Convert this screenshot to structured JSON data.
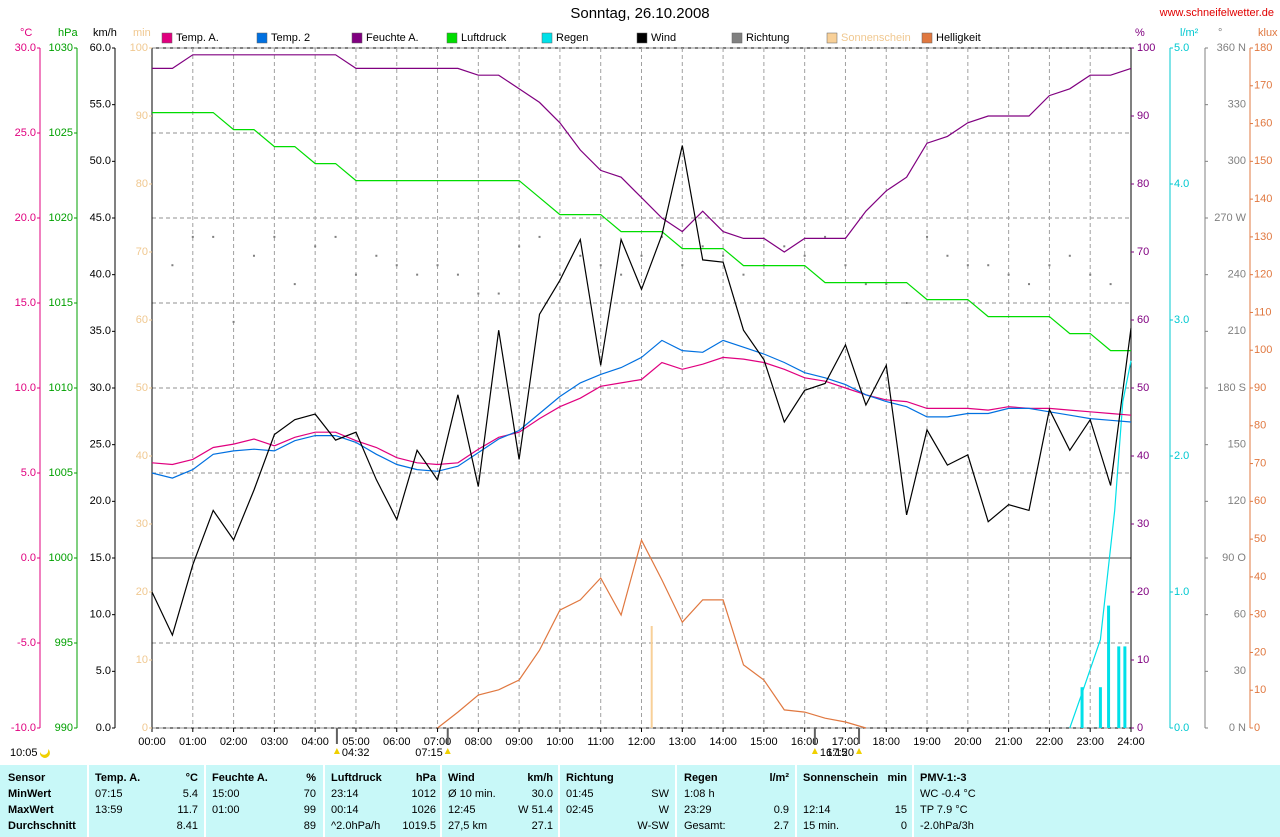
{
  "chart_data": {
    "type": "line",
    "title": "Sonntag, 26.10.2008",
    "source": "www.schneifelwetter.de",
    "note": "10:05",
    "grid": true,
    "grid_axis": 0,
    "xlim": [
      0,
      24
    ],
    "xticks": [
      {
        "value": 0,
        "label": "00:00"
      },
      {
        "value": 1,
        "label": "01:00"
      },
      {
        "value": 2,
        "label": "02:00"
      },
      {
        "value": 3,
        "label": "03:00"
      },
      {
        "value": 4,
        "label": "04:00"
      },
      {
        "value": 5,
        "label": "05:00"
      },
      {
        "value": 6,
        "label": "06:00"
      },
      {
        "value": 7,
        "label": "07:00"
      },
      {
        "value": 8,
        "label": "08:00"
      },
      {
        "value": 9,
        "label": "09:00"
      },
      {
        "value": 10,
        "label": "10:00"
      },
      {
        "value": 11,
        "label": "11:00"
      },
      {
        "value": 12,
        "label": "12:00"
      },
      {
        "value": 13,
        "label": "13:00"
      },
      {
        "value": 14,
        "label": "14:00"
      },
      {
        "value": 15,
        "label": "15:00"
      },
      {
        "value": 16,
        "label": "16:00"
      },
      {
        "value": 17,
        "label": "17:00"
      },
      {
        "value": 18,
        "label": "18:00"
      },
      {
        "value": 19,
        "label": "19:00"
      },
      {
        "value": 20,
        "label": "20:00"
      },
      {
        "value": 21,
        "label": "21:00"
      },
      {
        "value": 22,
        "label": "22:00"
      },
      {
        "value": 23,
        "label": "23:00"
      },
      {
        "value": 24,
        "label": "24:00"
      }
    ],
    "x": [
      0,
      0.5,
      1,
      1.5,
      2,
      2.5,
      3,
      3.5,
      4,
      4.5,
      5,
      5.5,
      6,
      6.5,
      7,
      7.5,
      8,
      8.5,
      9,
      9.5,
      10,
      10.5,
      11,
      11.5,
      12,
      12.5,
      13,
      13.5,
      14,
      14.5,
      15,
      15.5,
      16,
      16.5,
      17,
      17.5,
      18,
      18.5,
      19,
      19.5,
      20,
      20.5,
      21,
      21.5,
      22,
      22.5,
      23,
      23.5,
      24
    ],
    "axes": [
      {
        "label": "°C",
        "color": "#e0007f",
        "lim": [
          -10,
          30
        ],
        "ticks": [
          {
            "value": -10,
            "label": "-10.0"
          },
          {
            "value": -5,
            "label": "-5.0"
          },
          {
            "value": 0,
            "label": "0.0"
          },
          {
            "value": 5,
            "label": "5.0"
          },
          {
            "value": 10,
            "label": "10.0"
          },
          {
            "value": 15,
            "label": "15.0"
          },
          {
            "value": 20,
            "label": "20.0"
          },
          {
            "value": 25,
            "label": "25.0"
          },
          {
            "value": 30,
            "label": "30.0"
          }
        ]
      },
      {
        "label": "hPa",
        "color": "#00a000",
        "lim": [
          990,
          1030
        ],
        "ticks": [
          990,
          995,
          1000,
          1005,
          1010,
          1015,
          1020,
          1025,
          1030
        ]
      },
      {
        "label": "km/h",
        "color": "#000000",
        "lim": [
          0,
          60
        ],
        "ticks": [
          {
            "value": 0,
            "label": "0.0"
          },
          {
            "value": 5,
            "label": "5.0"
          },
          {
            "value": 10,
            "label": "10.0"
          },
          {
            "value": 15,
            "label": "15.0"
          },
          {
            "value": 20,
            "label": "20.0"
          },
          {
            "value": 25,
            "label": "25.0"
          },
          {
            "value": 30,
            "label": "30.0"
          },
          {
            "value": 35,
            "label": "35.0"
          },
          {
            "value": 40,
            "label": "40.0"
          },
          {
            "value": 45,
            "label": "45.0"
          },
          {
            "value": 50,
            "label": "50.0"
          },
          {
            "value": 55,
            "label": "55.0"
          },
          {
            "value": 60,
            "label": "60.0"
          }
        ]
      },
      {
        "label": "min",
        "color": "#f0c890",
        "lim": [
          0,
          100
        ],
        "ticks": [
          0,
          10,
          20,
          30,
          40,
          50,
          60,
          70,
          80,
          90,
          100
        ]
      },
      {
        "label": "%",
        "color": "#800080",
        "lim": [
          0,
          100
        ],
        "ticks": [
          0,
          10,
          20,
          30,
          40,
          50,
          60,
          70,
          80,
          90,
          100
        ]
      },
      {
        "label": "l/m²",
        "color": "#00c8d0",
        "lim": [
          0,
          5
        ],
        "ticks": [
          {
            "value": 0,
            "label": "0.0"
          },
          {
            "value": 1,
            "label": "1.0"
          },
          {
            "value": 2,
            "label": "2.0"
          },
          {
            "value": 3,
            "label": "3.0"
          },
          {
            "value": 4,
            "label": "4.0"
          },
          {
            "value": 5,
            "label": "5.0"
          }
        ]
      },
      {
        "label": "°",
        "color": "#808080",
        "lim": [
          0,
          360
        ],
        "ticks": [
          {
            "value": 0,
            "label": "0 N"
          },
          30,
          60,
          {
            "value": 90,
            "label": "90 O"
          },
          120,
          150,
          {
            "value": 180,
            "label": "180 S"
          },
          210,
          240,
          {
            "value": 270,
            "label": "270 W"
          },
          300,
          330,
          {
            "value": 360,
            "label": "360 N"
          }
        ]
      },
      {
        "label": "klux",
        "color": "#e07840",
        "lim": [
          0,
          180
        ],
        "ticks": [
          0,
          10,
          20,
          30,
          40,
          50,
          60,
          70,
          80,
          90,
          100,
          110,
          120,
          130,
          140,
          150,
          160,
          170,
          180
        ]
      }
    ],
    "series": [
      {
        "name": "Temp. A.",
        "color": "#e0007f",
        "axis": 0,
        "values": [
          5.6,
          5.5,
          5.8,
          6.5,
          6.7,
          7.0,
          6.6,
          7.1,
          7.4,
          7.4,
          6.9,
          6.5,
          5.9,
          5.6,
          5.5,
          5.6,
          6.4,
          7.1,
          7.4,
          8.2,
          8.9,
          9.4,
          10.1,
          10.3,
          10.5,
          11.5,
          11.1,
          11.4,
          11.8,
          11.7,
          11.5,
          11.1,
          10.6,
          10.4,
          10.0,
          9.6,
          9.3,
          9.2,
          8.8,
          8.8,
          8.8,
          8.7,
          8.9,
          8.8,
          8.8,
          8.7,
          8.6,
          8.5,
          8.4
        ]
      },
      {
        "name": "Temp. 2",
        "color": "#0070e0",
        "axis": 0,
        "values": [
          5.0,
          4.7,
          5.2,
          6.1,
          6.3,
          6.4,
          6.3,
          6.9,
          7.2,
          7.2,
          6.8,
          6.1,
          5.5,
          5.2,
          5.1,
          5.4,
          6.2,
          7.0,
          7.5,
          8.5,
          9.5,
          10.3,
          10.8,
          11.2,
          11.8,
          12.8,
          12.2,
          12.1,
          12.8,
          12.4,
          12.0,
          11.5,
          10.9,
          10.6,
          10.2,
          9.6,
          9.2,
          8.9,
          8.3,
          8.3,
          8.5,
          8.5,
          8.8,
          8.8,
          8.6,
          8.4,
          8.2,
          8.1,
          8.0
        ]
      },
      {
        "name": "Feuchte A.",
        "color": "#800080",
        "axis": 4,
        "values": [
          97,
          97,
          99,
          99,
          99,
          99,
          99,
          99,
          99,
          99,
          97,
          97,
          97,
          97,
          97,
          97,
          96,
          96,
          94,
          92,
          89,
          85,
          82,
          81,
          78,
          75,
          73,
          76,
          73,
          72,
          72,
          70,
          72,
          72,
          72,
          76,
          79,
          81,
          86,
          87,
          89,
          90,
          90,
          90,
          93,
          94,
          96,
          96,
          97
        ]
      },
      {
        "name": "Luftdruck",
        "color": "#00dd00",
        "axis": 1,
        "values": [
          1026.2,
          1026.2,
          1026.2,
          1026.2,
          1025.2,
          1025.2,
          1024.2,
          1024.2,
          1023.2,
          1023.2,
          1022.2,
          1022.2,
          1022.2,
          1022.2,
          1022.2,
          1022.2,
          1022.2,
          1022.2,
          1022.2,
          1021.2,
          1020.2,
          1020.2,
          1020.2,
          1019.2,
          1019.2,
          1019.2,
          1018.2,
          1018.2,
          1018.2,
          1017.2,
          1017.2,
          1017.2,
          1017.2,
          1016.2,
          1016.2,
          1016.2,
          1016.2,
          1016.2,
          1015.2,
          1015.2,
          1015.2,
          1014.2,
          1014.2,
          1014.2,
          1014.2,
          1013.2,
          1013.2,
          1012.2,
          1012.2
        ]
      },
      {
        "name": "Regen",
        "color": "#00e0e8",
        "axis": 5,
        "x": [
          22.5,
          22.85,
          23.25,
          23.6,
          23.8,
          24
        ],
        "values": [
          0,
          0.3,
          0.65,
          1.6,
          2.4,
          2.7
        ],
        "bars": {
          "x": [
            22.8,
            23.25,
            23.45,
            23.7,
            23.85
          ],
          "values": [
            0.3,
            0.3,
            0.9,
            0.6,
            0.6
          ]
        }
      },
      {
        "name": "Wind",
        "color": "#000000",
        "axis": 2,
        "values": [
          12.0,
          8.2,
          14.4,
          19.2,
          16.6,
          21.0,
          25.9,
          27.2,
          27.7,
          25.4,
          26.1,
          21.9,
          18.4,
          24.5,
          21.9,
          29.4,
          21.3,
          35.1,
          23.7,
          36.5,
          39.5,
          43.1,
          32.0,
          43.1,
          38.7,
          43.5,
          51.4,
          41.3,
          41.1,
          35.1,
          32.5,
          27.0,
          29.8,
          30.4,
          33.8,
          28.5,
          32.0,
          18.8,
          26.3,
          23.2,
          24.1,
          18.2,
          19.7,
          19.2,
          28.1,
          24.5,
          27.2,
          21.4,
          35.3
        ]
      },
      {
        "name": "Richtung",
        "color": "#808080",
        "axis": 6,
        "style": "dots",
        "values": [
          null,
          245,
          260,
          260,
          215,
          250,
          260,
          235,
          255,
          260,
          240,
          250,
          245,
          240,
          245,
          240,
          230,
          230,
          255,
          260,
          240,
          250,
          245,
          240,
          250,
          260,
          245,
          255,
          250,
          240,
          245,
          255,
          250,
          260,
          245,
          235,
          235,
          225,
          260,
          250,
          245,
          245,
          240,
          235,
          245,
          250,
          240,
          235,
          250
        ]
      },
      {
        "name": "Sonnenschein",
        "color": "#f8d098",
        "label_color": "#f0c890",
        "axis": 3,
        "style": "bar",
        "x": [
          12.25
        ],
        "values": [
          15
        ]
      },
      {
        "name": "Helligkeit",
        "color": "#e07840",
        "axis": 7,
        "values": [
          null,
          null,
          null,
          null,
          null,
          null,
          null,
          null,
          null,
          null,
          null,
          null,
          null,
          null,
          0,
          4.2,
          8.7,
          10.1,
          12.7,
          20.6,
          31.2,
          33.9,
          39.7,
          29.9,
          49.7,
          39.2,
          28.0,
          33.9,
          33.9,
          16.7,
          12.7,
          4.8,
          4.2,
          2.6,
          1.6,
          0,
          null,
          null,
          null,
          null,
          null,
          null,
          null,
          null,
          null,
          null,
          null,
          null,
          null
        ]
      }
    ],
    "events": [
      {
        "label": "04:32",
        "x": 4.533
      },
      {
        "label": "07:15",
        "x": 7.25
      },
      {
        "label": "16:15",
        "x": 16.25
      },
      {
        "label": "17:20",
        "x": 17.333
      }
    ]
  },
  "table": {
    "rows": [
      [
        {
          "l": "Sensor"
        },
        {
          "l": "Temp. A.",
          "r": "°C"
        },
        {
          "l": "Feuchte A.",
          "r": "%"
        },
        {
          "l": "Luftdruck",
          "r": "hPa"
        },
        {
          "l": "Wind",
          "r": "km/h"
        },
        {
          "l": "Richtung"
        },
        {
          "l": "Regen",
          "r": "l/m²"
        },
        {
          "l": "Sonnenschein",
          "r": "min"
        },
        {
          "l": "PMV-1:-3"
        }
      ],
      [
        {
          "l": "MinWert"
        },
        {
          "l": "07:15",
          "r": "5.4"
        },
        {
          "l": "15:00",
          "r": "70"
        },
        {
          "l": "23:14",
          "r": "1012"
        },
        {
          "l": "Ø 10 min.",
          "r": "30.0"
        },
        {
          "l": "01:45",
          "r": "SW"
        },
        {
          "l": "1:08 h"
        },
        {},
        {
          "l": "WC -0.4 °C"
        }
      ],
      [
        {
          "l": "MaxWert"
        },
        {
          "l": "13:59",
          "r": "11.7"
        },
        {
          "l": "01:00",
          "r": "99"
        },
        {
          "l": "00:14",
          "r": "1026"
        },
        {
          "l": "12:45",
          "r": "W 51.4"
        },
        {
          "l": "02:45",
          "r": "W"
        },
        {
          "l": "23:29",
          "r": "0.9"
        },
        {
          "l": "12:14",
          "r": "15"
        },
        {
          "l": "TP 7.9 °C"
        }
      ],
      [
        {
          "l": "Durchschnitt"
        },
        {
          "r": "8.41"
        },
        {
          "r": "89"
        },
        {
          "l": "^2.0hPa/h",
          "r": "1019.5"
        },
        {
          "l": "27,5 km",
          "r": "27.1"
        },
        {
          "r": "W-SW"
        },
        {
          "l": "Gesamt:",
          "r": "2.7"
        },
        {
          "l": "15 min.",
          "r": "0"
        },
        {
          "l": "-2.0hPa/3h"
        }
      ]
    ]
  }
}
